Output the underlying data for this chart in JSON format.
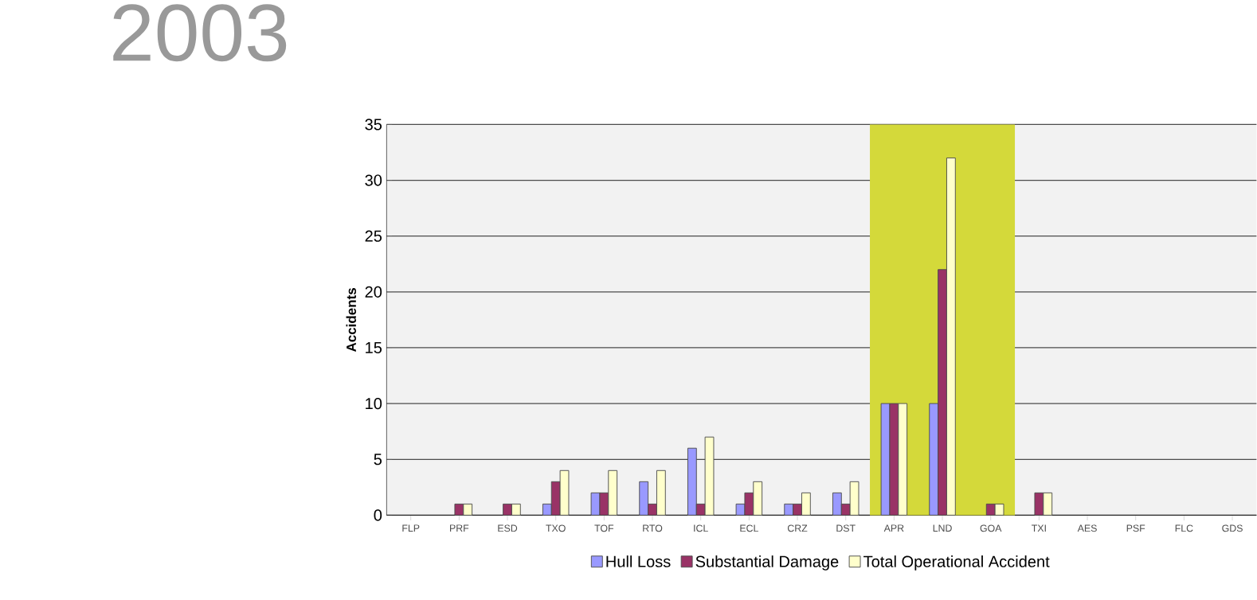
{
  "chart_data": {
    "type": "bar",
    "title": "2003",
    "ylabel": "Accidents",
    "categories": [
      "FLP",
      "PRF",
      "ESD",
      "TXO",
      "TOF",
      "RTO",
      "ICL",
      "ECL",
      "CRZ",
      "DST",
      "APR",
      "LND",
      "GOA",
      "TXI",
      "AES",
      "PSF",
      "FLC",
      "GDS"
    ],
    "series": [
      {
        "name": "Hull Loss",
        "color": "#9999ff",
        "values": [
          0,
          0,
          0,
          1,
          2,
          3,
          6,
          1,
          1,
          2,
          10,
          10,
          0,
          0,
          0,
          0,
          0,
          0
        ]
      },
      {
        "name": "Substantial Damage",
        "color": "#993366",
        "values": [
          0,
          1,
          1,
          3,
          2,
          1,
          1,
          2,
          1,
          1,
          10,
          22,
          1,
          2,
          0,
          0,
          0,
          0
        ]
      },
      {
        "name": "Total Operational Accident",
        "color": "#ffffcc",
        "values": [
          0,
          1,
          1,
          4,
          4,
          4,
          7,
          3,
          2,
          3,
          10,
          32,
          1,
          2,
          0,
          0,
          0,
          0
        ]
      }
    ],
    "ylim": [
      0,
      35
    ],
    "yticks": [
      0,
      5,
      10,
      15,
      20,
      25,
      30,
      35
    ],
    "grid": "y",
    "legend": "bottom",
    "bands": [
      {
        "axis": "x",
        "from": "APR",
        "to": "GOA",
        "color": "#d4d93a"
      }
    ]
  }
}
